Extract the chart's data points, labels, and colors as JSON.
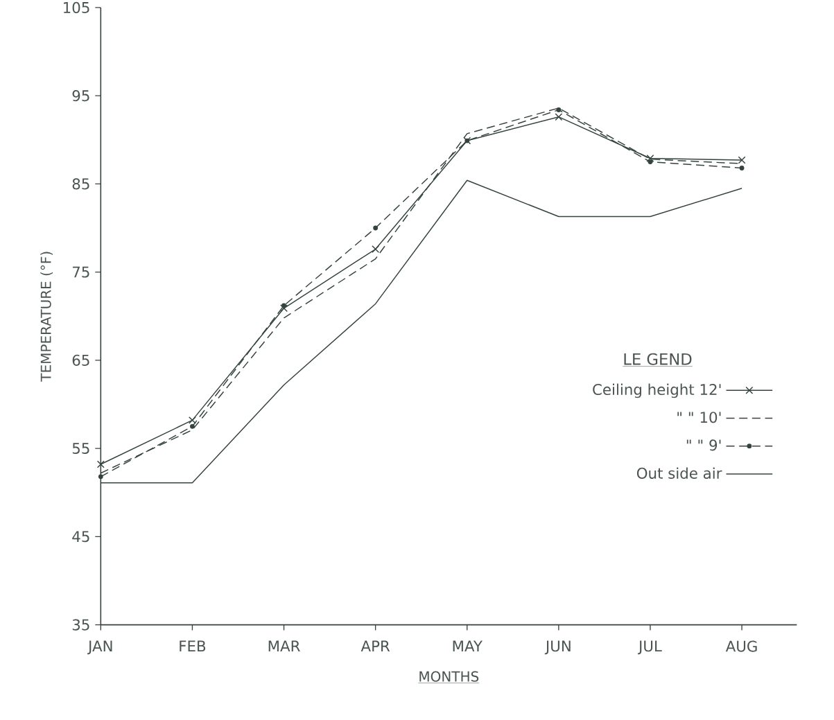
{
  "chart_data": {
    "type": "line",
    "xlabel": "MONTHS",
    "ylabel": "TEMPERATURE (°F)",
    "legend_title": "LE GEND",
    "categories": [
      "JAN",
      "FEB",
      "MAR",
      "APR",
      "MAY",
      "JUN",
      "JUL",
      "AUG"
    ],
    "ylim": [
      35,
      105
    ],
    "yticks": [
      35,
      45,
      55,
      65,
      75,
      85,
      95,
      105
    ],
    "legend": "right",
    "grid": false,
    "series": [
      {
        "name": "Ceiling height 12'",
        "color": "#34433f",
        "line_style": "solid",
        "marker": "cross",
        "values": [
          53.2,
          58.2,
          70.9,
          77.6,
          89.9,
          92.6,
          87.9,
          87.7
        ]
      },
      {
        "name": "\"   \"   10'",
        "color": "#34433f",
        "line_style": "dashed",
        "marker": "none",
        "values": [
          52.2,
          57.1,
          69.8,
          76.5,
          90.7,
          93.6,
          87.8,
          87.3
        ]
      },
      {
        "name": "\"   \"   9'",
        "color": "#34433f",
        "line_style": "dashed",
        "marker": "circle",
        "values": [
          51.8,
          57.5,
          71.2,
          80.0,
          89.9,
          93.4,
          87.5,
          86.8
        ]
      },
      {
        "name": "Out side air",
        "color": "#34433f",
        "line_style": "solid",
        "marker": "none",
        "values": [
          51.1,
          51.1,
          62.2,
          71.4,
          85.4,
          81.3,
          81.3,
          84.5
        ]
      }
    ]
  }
}
